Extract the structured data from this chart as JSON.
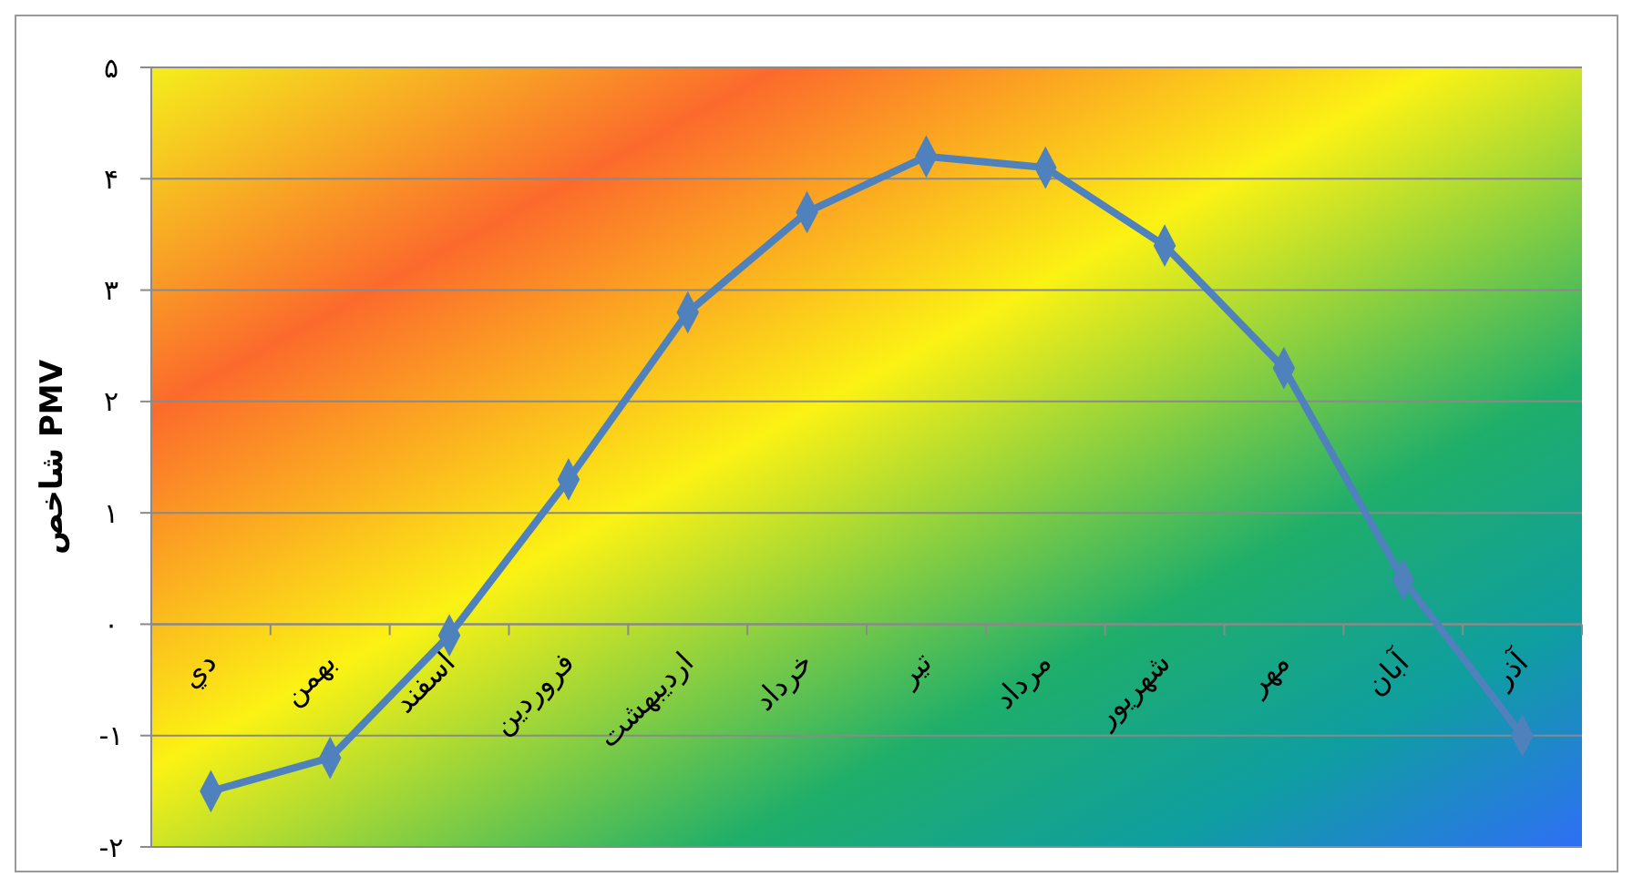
{
  "chart_data": {
    "type": "line",
    "ylabel": "شاخص PMV",
    "categories": [
      "دي",
      "بهمن",
      "اسفند",
      "فروردين",
      "ارديبهشت",
      "خرداد",
      "تير",
      "مرداد",
      "شهريور",
      "مهر",
      "آبان",
      "آذر"
    ],
    "series": [
      {
        "color": "#4f81bd",
        "values": [
          -1.5,
          -1.2,
          -0.1,
          1.3,
          2.8,
          3.7,
          4.2,
          4.1,
          3.4,
          2.3,
          0.4,
          -1.0
        ]
      }
    ],
    "ylim": [
      -2,
      5
    ],
    "yticks": [
      {
        "value": -2,
        "label": "-۲"
      },
      {
        "value": -1,
        "label": "-۱"
      },
      {
        "value": 0,
        "label": "۰"
      },
      {
        "value": 1,
        "label": "۱"
      },
      {
        "value": 2,
        "label": "۲"
      },
      {
        "value": 3,
        "label": "۳"
      },
      {
        "value": 4,
        "label": "۴"
      },
      {
        "value": 5,
        "label": "۵"
      }
    ],
    "grid": "y",
    "marker": "diamond",
    "line_style": "solid"
  }
}
